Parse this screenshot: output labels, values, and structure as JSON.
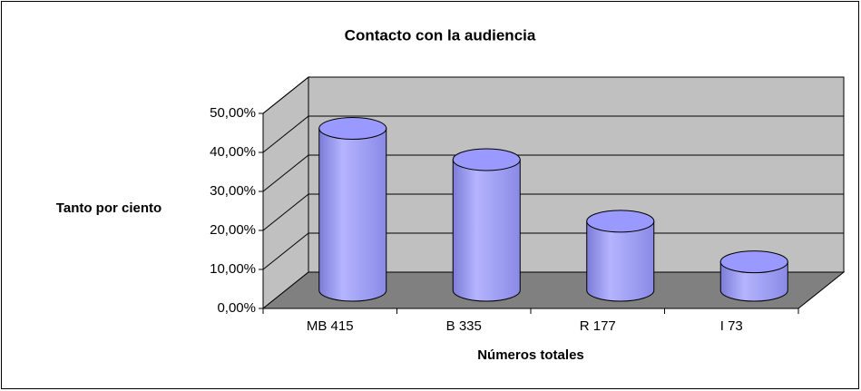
{
  "chart_data": {
    "type": "bar3d",
    "title": "Contacto con la audiencia",
    "y_label": "Tanto por ciento",
    "x_label": "Números totales",
    "categories": [
      "MB 415",
      "B 335",
      "R 177",
      "I 73"
    ],
    "values": [
      41.5,
      33.5,
      17.7,
      7.3
    ],
    "color": "#9999ff",
    "ylim": [
      0,
      50
    ],
    "yticks": [
      {
        "value": 0,
        "label": "0,00%"
      },
      {
        "value": 10,
        "label": "10,00%"
      },
      {
        "value": 20,
        "label": "20,00%"
      },
      {
        "value": 30,
        "label": "30,00%"
      },
      {
        "value": 40,
        "label": "40,00%"
      },
      {
        "value": 50,
        "label": "50,00%"
      }
    ],
    "grid": true
  }
}
